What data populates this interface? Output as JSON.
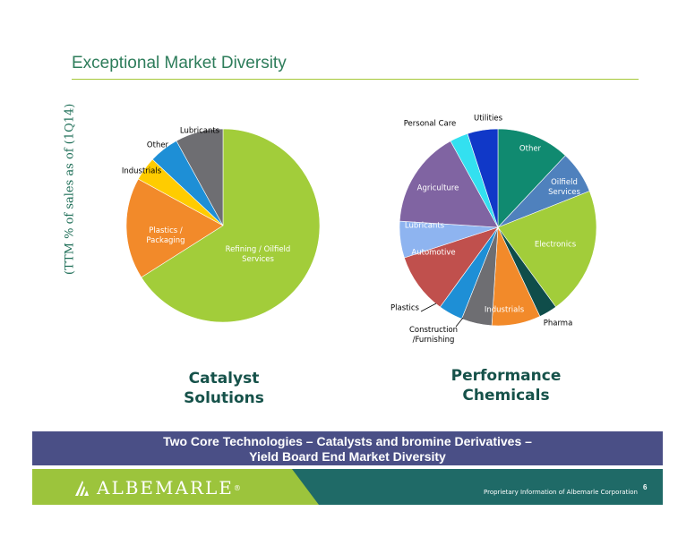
{
  "slide": {
    "title": "Exceptional Market Diversity",
    "ylabel": "(TTM  % of sales as of (1Q14)",
    "banner_line1": "Two Core Technologies – Catalysts and bromine Derivatives –",
    "banner_line2": "Yield Board End Market Diversity",
    "logo": "ALBEMARLE",
    "logo_reg": "®",
    "proprietary": "Proprietary Information of Albemarle Corporation",
    "page": "6"
  },
  "colors": {
    "title": "#2e7d5b",
    "rule": "#a6c83a",
    "banner": "#4a4f86",
    "footer_green": "#9cc43c",
    "footer_teal": "#1f6a67"
  },
  "chart_data": [
    {
      "type": "pie",
      "title": "Catalyst Solutions",
      "title_lines": [
        "Catalyst",
        "Solutions"
      ],
      "start": "12 o'clock, clockwise",
      "slices": [
        {
          "label": "Refining / Oilfield Services",
          "label_lines": [
            "Refining / Oilfield",
            "Services"
          ],
          "value": 66,
          "color": "#a2cd3a",
          "label_pos": "inside",
          "label_color": "#ffffff"
        },
        {
          "label": "Plastics / Packaging",
          "label_lines": [
            "Plastics /",
            "Packaging"
          ],
          "value": 17,
          "color": "#f28a2a",
          "label_pos": "inside",
          "label_color": "#ffffff"
        },
        {
          "label": "Industrials",
          "label_lines": [
            "Industrials"
          ],
          "value": 4,
          "color": "#ffcc00",
          "label_pos": "outside",
          "label_color": "#000000"
        },
        {
          "label": "Other",
          "label_lines": [
            "Other"
          ],
          "value": 5,
          "color": "#1e8fd6",
          "label_pos": "outside",
          "label_color": "#000000"
        },
        {
          "label": "Lubricants",
          "label_lines": [
            "Lubricants"
          ],
          "value": 8,
          "color": "#6e6e72",
          "label_pos": "outside",
          "label_color": "#000000"
        }
      ]
    },
    {
      "type": "pie",
      "title": "Performance Chemicals",
      "title_lines": [
        "Performance",
        "Chemicals"
      ],
      "start": "12 o'clock, clockwise",
      "slices": [
        {
          "label": "Other",
          "label_lines": [
            "Other"
          ],
          "value": 12,
          "color": "#108a70",
          "label_pos": "inside",
          "label_color": "#ffffff"
        },
        {
          "label": "Oilfield Services",
          "label_lines": [
            "Oilfield",
            "Services"
          ],
          "value": 7,
          "color": "#4f81bd",
          "label_pos": "inside",
          "label_color": "#ffffff"
        },
        {
          "label": "Electronics",
          "label_lines": [
            "Electronics"
          ],
          "value": 21,
          "color": "#a2cd3a",
          "label_pos": "inside",
          "label_color": "#ffffff"
        },
        {
          "label": "Pharma",
          "label_lines": [
            "Pharma"
          ],
          "value": 3,
          "color": "#0f4d4a",
          "label_pos": "outside",
          "label_color": "#000000"
        },
        {
          "label": "Industrials",
          "label_lines": [
            "Industrials"
          ],
          "value": 8,
          "color": "#f28a2a",
          "label_pos": "inside",
          "label_color": "#ffffff"
        },
        {
          "label": "Construction / Furnishing",
          "label_lines": [
            "Construction",
            "/Furnishing"
          ],
          "value": 5,
          "color": "#6e6e72",
          "label_pos": "outside",
          "label_color": "#000000"
        },
        {
          "label": "Plastics",
          "label_lines": [
            "Plastics"
          ],
          "value": 4,
          "color": "#1e8fd6",
          "label_pos": "outside",
          "label_color": "#000000"
        },
        {
          "label": "Automotive",
          "label_lines": [
            "Automotive"
          ],
          "value": 10,
          "color": "#c0504d",
          "label_pos": "inside",
          "label_color": "#ffffff"
        },
        {
          "label": "Lubricants",
          "label_lines": [
            "Lubricants"
          ],
          "value": 6,
          "color": "#8eb4f0",
          "label_pos": "inside",
          "label_color": "#ffffff"
        },
        {
          "label": "Agriculture",
          "label_lines": [
            "Agriculture"
          ],
          "value": 16,
          "color": "#8064a2",
          "label_pos": "inside",
          "label_color": "#ffffff"
        },
        {
          "label": "Personal Care",
          "label_lines": [
            "Personal Care"
          ],
          "value": 3,
          "color": "#33e0f0",
          "label_pos": "outside",
          "label_color": "#000000"
        },
        {
          "label": "Utilities",
          "label_lines": [
            "Utilities"
          ],
          "value": 5,
          "color": "#1038c8",
          "label_pos": "outside",
          "label_color": "#000000"
        }
      ]
    }
  ]
}
